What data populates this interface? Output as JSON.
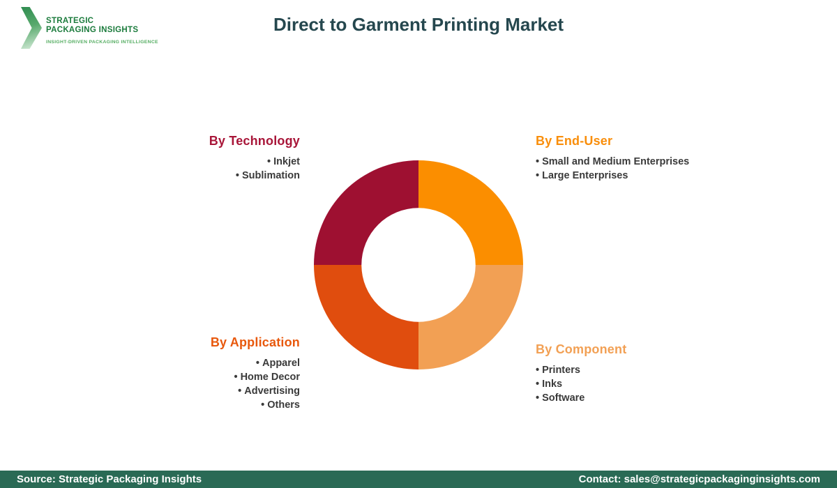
{
  "title": "Direct to Garment Printing Market",
  "brand": {
    "name_line1": "STRATEGIC",
    "name_line2": "PACKAGING INSIGHTS",
    "tagline": "INSIGHT-DRIVEN PACKAGING INTELLIGENCE",
    "logo_green_dark": "#1b7b3c",
    "logo_green_light": "#55ad62"
  },
  "sections": {
    "technology": {
      "heading": "By Technology",
      "color": "#a81538",
      "items": [
        "Inkjet",
        "Sublimation"
      ]
    },
    "end_user": {
      "heading": "By End-User",
      "color": "#f98e0b",
      "items": [
        "Small and Medium Enterprises",
        "Large Enterprises"
      ]
    },
    "application": {
      "heading": "By Application",
      "color": "#e8580c",
      "items": [
        "Apparel",
        "Home Decor",
        "Advertising",
        "Others"
      ]
    },
    "component": {
      "heading": "By Component",
      "color": "#f2a054",
      "items": [
        "Printers",
        "Inks",
        "Software"
      ]
    }
  },
  "chart_data": {
    "type": "pie",
    "subtype": "donut",
    "title": "Direct to Garment Printing Market segmentation donut",
    "start_angle_deg": -90,
    "direction": "clockwise",
    "inner_radius_ratio": 0.545,
    "segments": [
      {
        "id": "end-user",
        "label": "By End-User",
        "value": 25,
        "color": "#fb8e00",
        "position": "top-right"
      },
      {
        "id": "component",
        "label": "By Component",
        "value": 25,
        "color": "#f2a054",
        "position": "bottom-right"
      },
      {
        "id": "application",
        "label": "By Application",
        "value": 25,
        "color": "#e04d0e",
        "position": "bottom-left"
      },
      {
        "id": "technology",
        "label": "By Technology",
        "value": 25,
        "color": "#9e1031",
        "position": "top-left"
      }
    ],
    "legend_position": "none",
    "grid": false
  },
  "footer": {
    "source": "Source: Strategic Packaging Insights",
    "contact": "Contact: sales@strategicpackaginginsights.com",
    "bg_color": "#2a6a55"
  }
}
